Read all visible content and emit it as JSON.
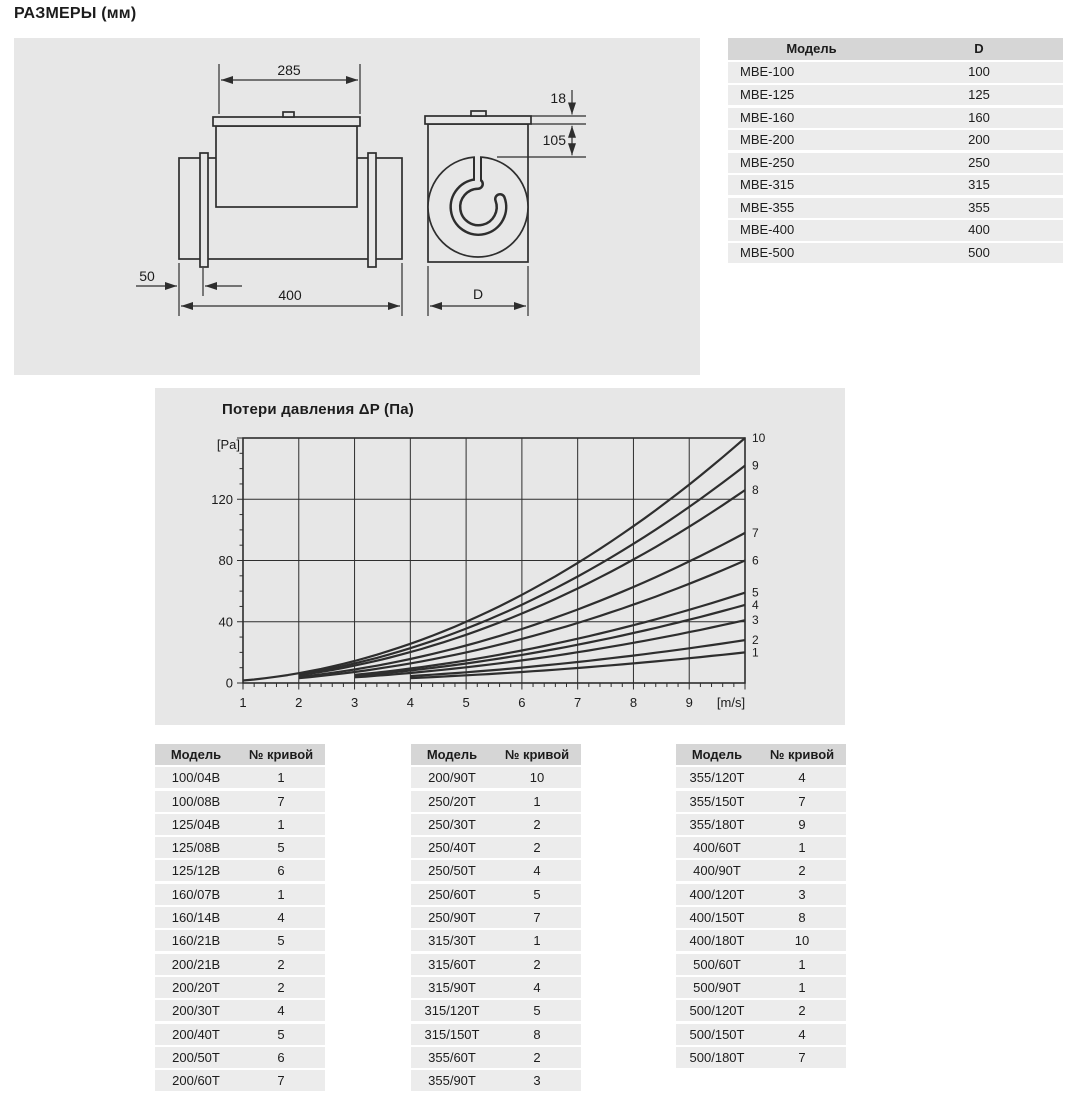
{
  "page": {
    "title": "РАЗМЕРЫ (мм)"
  },
  "drawing": {
    "dims": {
      "top_width": "285",
      "inlet_offset": "50",
      "total_length": "400",
      "cover_height": "18",
      "box_height": "105",
      "diameter": "D"
    }
  },
  "model_table": {
    "headers": [
      "Модель",
      "D"
    ],
    "rows": [
      [
        "МВЕ-100",
        "100"
      ],
      [
        "МВЕ-125",
        "125"
      ],
      [
        "МВЕ-160",
        "160"
      ],
      [
        "МВЕ-200",
        "200"
      ],
      [
        "МВЕ-250",
        "250"
      ],
      [
        "МВЕ-315",
        "315"
      ],
      [
        "МВЕ-355",
        "355"
      ],
      [
        "МВЕ-400",
        "400"
      ],
      [
        "МВЕ-500",
        "500"
      ]
    ]
  },
  "chart_data": {
    "type": "line",
    "title": "Потери давления ΔP (Па)",
    "ylabel": "[Pa]",
    "xlabel": "[m/s]",
    "xlim": [
      1,
      10
    ],
    "ylim": [
      0,
      160
    ],
    "x_ticks": [
      1,
      2,
      3,
      4,
      5,
      6,
      7,
      8,
      9
    ],
    "y_ticks": [
      0,
      40,
      80,
      120
    ],
    "x_minor_step": 0.2,
    "y_minor_step": 10,
    "grid": true,
    "legend_position": "right-edge-curve-numbers",
    "model": "dP[Pa] = C * v[m/s]^2 from v_start to 10 m/s",
    "series": [
      {
        "name": "1",
        "C": 0.2,
        "v_start": 4,
        "v_end": 10,
        "end_dP": 20
      },
      {
        "name": "2",
        "C": 0.28,
        "v_start": 4,
        "v_end": 10,
        "end_dP": 28
      },
      {
        "name": "3",
        "C": 0.41,
        "v_start": 3,
        "v_end": 10,
        "end_dP": 41
      },
      {
        "name": "4",
        "C": 0.51,
        "v_start": 3,
        "v_end": 10,
        "end_dP": 51
      },
      {
        "name": "5",
        "C": 0.59,
        "v_start": 3,
        "v_end": 10,
        "end_dP": 59
      },
      {
        "name": "6",
        "C": 0.8,
        "v_start": 2,
        "v_end": 10,
        "end_dP": 80
      },
      {
        "name": "7",
        "C": 0.98,
        "v_start": 2,
        "v_end": 10,
        "end_dP": 98
      },
      {
        "name": "8",
        "C": 1.26,
        "v_start": 2,
        "v_end": 10,
        "end_dP": 126
      },
      {
        "name": "9",
        "C": 1.42,
        "v_start": 2,
        "v_end": 10,
        "end_dP": 142
      },
      {
        "name": "10",
        "C": 1.6,
        "v_start": 1,
        "v_end": 10,
        "end_dP": 160
      }
    ]
  },
  "curve_tables": [
    {
      "headers": [
        "Модель",
        "№ кривой"
      ],
      "rows": [
        [
          "100/04В",
          "1"
        ],
        [
          "100/08В",
          "7"
        ],
        [
          "125/04В",
          "1"
        ],
        [
          "125/08В",
          "5"
        ],
        [
          "125/12В",
          "6"
        ],
        [
          "160/07В",
          "1"
        ],
        [
          "160/14В",
          "4"
        ],
        [
          "160/21В",
          "5"
        ],
        [
          "200/21В",
          "2"
        ],
        [
          "200/20Т",
          "2"
        ],
        [
          "200/30Т",
          "4"
        ],
        [
          "200/40Т",
          "5"
        ],
        [
          "200/50Т",
          "6"
        ],
        [
          "200/60Т",
          "7"
        ]
      ]
    },
    {
      "headers": [
        "Модель",
        "№ кривой"
      ],
      "rows": [
        [
          "200/90Т",
          "10"
        ],
        [
          "250/20Т",
          "1"
        ],
        [
          "250/30Т",
          "2"
        ],
        [
          "250/40Т",
          "2"
        ],
        [
          "250/50Т",
          "4"
        ],
        [
          "250/60Т",
          "5"
        ],
        [
          "250/90Т",
          "7"
        ],
        [
          "315/30Т",
          "1"
        ],
        [
          "315/60Т",
          "2"
        ],
        [
          "315/90Т",
          "4"
        ],
        [
          "315/120Т",
          "5"
        ],
        [
          "315/150Т",
          "8"
        ],
        [
          "355/60Т",
          "2"
        ],
        [
          "355/90Т",
          "3"
        ]
      ]
    },
    {
      "headers": [
        "Модель",
        "№ кривой"
      ],
      "rows": [
        [
          "355/120Т",
          "4"
        ],
        [
          "355/150Т",
          "7"
        ],
        [
          "355/180Т",
          "9"
        ],
        [
          "400/60Т",
          "1"
        ],
        [
          "400/90Т",
          "2"
        ],
        [
          "400/120Т",
          "3"
        ],
        [
          "400/150Т",
          "8"
        ],
        [
          "400/180Т",
          "10"
        ],
        [
          "500/60Т",
          "1"
        ],
        [
          "500/90Т",
          "1"
        ],
        [
          "500/120Т",
          "2"
        ],
        [
          "500/150Т",
          "4"
        ],
        [
          "500/180Т",
          "7"
        ]
      ]
    }
  ],
  "colors": {
    "panel_bg": "#e7e7e7",
    "table_header_bg": "#d6d6d6",
    "table_row_bg": "#ececec",
    "line": "#2e2e2e",
    "text": "#1c1c1c"
  }
}
